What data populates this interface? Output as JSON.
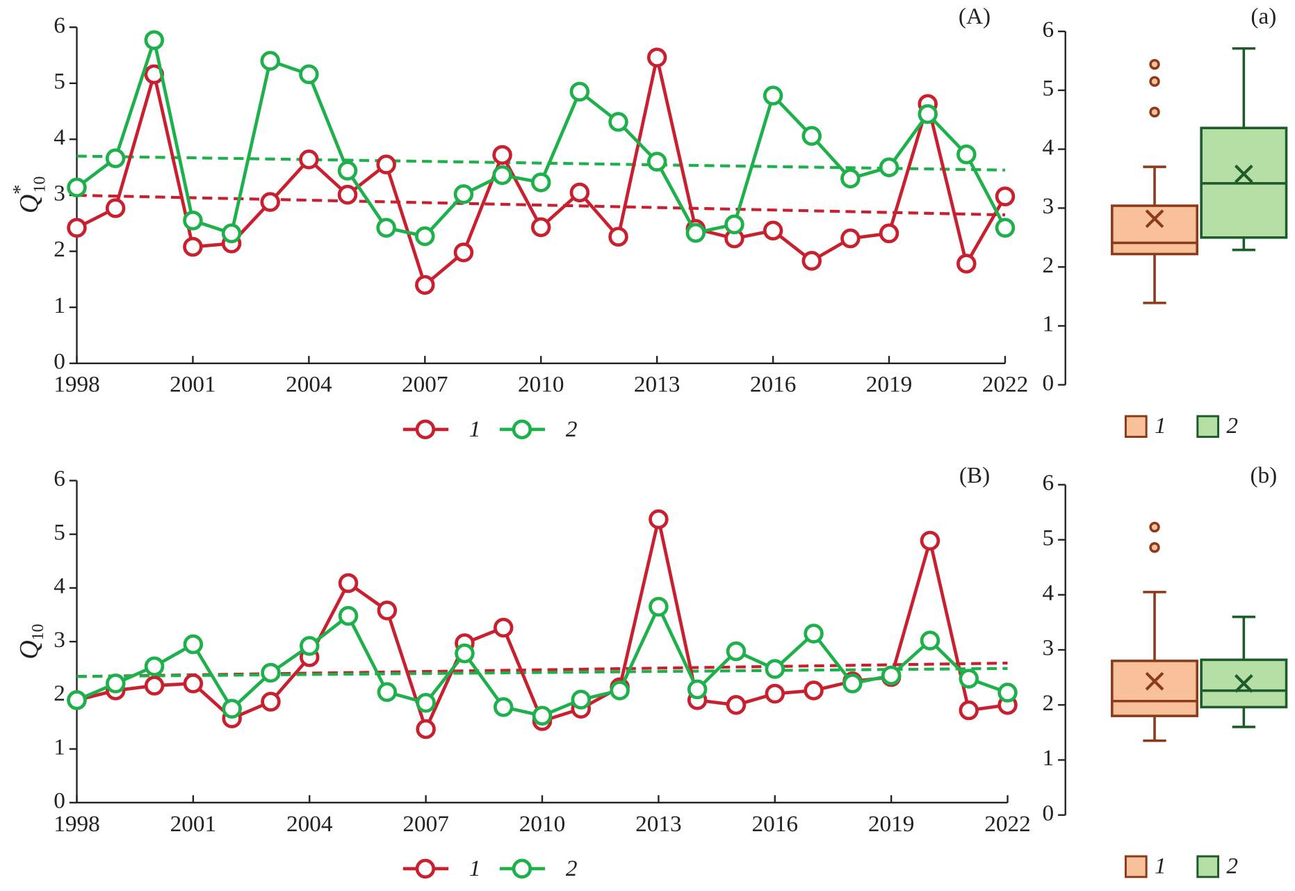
{
  "chart_data": [
    {
      "type": "line",
      "panel_label": "(A)",
      "y_label": "Q",
      "y_label_sup": "*",
      "y_label_sub": "10",
      "x": [
        1998,
        1999,
        2000,
        2001,
        2002,
        2003,
        2004,
        2005,
        2006,
        2007,
        2008,
        2009,
        2010,
        2011,
        2012,
        2013,
        2014,
        2015,
        2016,
        2017,
        2018,
        2019,
        2020,
        2021,
        2022
      ],
      "xlim": [
        1998,
        2022
      ],
      "xticks": [
        1998,
        2001,
        2004,
        2007,
        2010,
        2013,
        2016,
        2019,
        2022
      ],
      "ylim": [
        0,
        6
      ],
      "yticks": [
        0,
        1,
        2,
        3,
        4,
        5,
        6
      ],
      "series": [
        {
          "name": "1",
          "color": "#c8202f",
          "values": [
            2.42,
            2.77,
            5.16,
            2.08,
            2.14,
            2.88,
            3.64,
            3.01,
            3.55,
            1.4,
            1.98,
            3.72,
            2.43,
            3.05,
            2.26,
            5.46,
            2.4,
            2.23,
            2.37,
            1.83,
            2.23,
            2.32,
            4.63,
            1.78,
            2.98
          ],
          "trend": [
            3.0,
            2.65
          ]
        },
        {
          "name": "2",
          "color": "#1db04b",
          "values": [
            3.14,
            3.66,
            5.77,
            2.55,
            2.32,
            5.4,
            5.16,
            3.44,
            2.42,
            2.27,
            3.02,
            3.36,
            3.23,
            4.85,
            4.31,
            3.6,
            2.33,
            2.48,
            4.78,
            4.06,
            3.3,
            3.5,
            4.45,
            3.73,
            2.42
          ],
          "trend": [
            3.7,
            3.45
          ]
        }
      ]
    },
    {
      "type": "box",
      "panel_label": "(a)",
      "ylim": [
        0,
        6
      ],
      "yticks": [
        0,
        1,
        2,
        3,
        4,
        5,
        6
      ],
      "boxes": [
        {
          "name": "1",
          "color": "#f9c19a",
          "edge": "#8b3a1a",
          "whisker_low": 1.39,
          "q1": 2.22,
          "median": 2.41,
          "q3": 3.04,
          "whisker_high": 3.7,
          "mean": 2.82,
          "outliers": [
            5.44,
            5.15,
            4.63
          ]
        },
        {
          "name": "2",
          "color": "#b5dfa5",
          "edge": "#1e5b2a",
          "whisker_low": 2.29,
          "q1": 2.5,
          "median": 3.42,
          "q3": 4.36,
          "whisker_high": 5.71,
          "mean": 3.58,
          "outliers": []
        }
      ]
    },
    {
      "type": "line",
      "panel_label": "(B)",
      "y_label": "Q",
      "y_label_sub": "10",
      "x": [
        1998,
        1999,
        2000,
        2001,
        2002,
        2003,
        2004,
        2005,
        2006,
        2007,
        2008,
        2009,
        2010,
        2011,
        2012,
        2013,
        2014,
        2015,
        2016,
        2017,
        2018,
        2019,
        2020,
        2021,
        2022
      ],
      "xlim": [
        1998,
        2022
      ],
      "xticks": [
        1998,
        2001,
        2004,
        2007,
        2010,
        2013,
        2016,
        2019,
        2022
      ],
      "ylim": [
        0,
        6
      ],
      "yticks": [
        0,
        1,
        2,
        3,
        4,
        5,
        6
      ],
      "series": [
        {
          "name": "1",
          "color": "#c8202f",
          "values": [
            1.91,
            2.09,
            2.18,
            2.22,
            1.57,
            1.88,
            2.71,
            4.09,
            3.58,
            1.37,
            2.97,
            3.26,
            1.52,
            1.75,
            2.15,
            5.28,
            1.91,
            1.82,
            2.03,
            2.09,
            2.26,
            2.34,
            4.88,
            1.72,
            1.82
          ],
          "trend": [
            2.35,
            2.6
          ]
        },
        {
          "name": "2",
          "color": "#1db04b",
          "values": [
            1.91,
            2.22,
            2.54,
            2.95,
            1.75,
            2.42,
            2.92,
            3.48,
            2.06,
            1.86,
            2.78,
            1.78,
            1.62,
            1.92,
            2.09,
            3.65,
            2.11,
            2.82,
            2.49,
            3.15,
            2.22,
            2.37,
            3.02,
            2.31,
            2.05
          ],
          "trend": [
            2.35,
            2.5
          ]
        }
      ]
    },
    {
      "type": "box",
      "panel_label": "(b)",
      "ylim": [
        0,
        6
      ],
      "yticks": [
        0,
        1,
        2,
        3,
        4,
        5,
        6
      ],
      "boxes": [
        {
          "name": "1",
          "color": "#f9c19a",
          "edge": "#8b3a1a",
          "whisker_low": 1.35,
          "q1": 1.8,
          "median": 2.07,
          "q3": 2.8,
          "whisker_high": 4.05,
          "mean": 2.43,
          "outliers": [
            5.23,
            4.86
          ]
        },
        {
          "name": "2",
          "color": "#b5dfa5",
          "edge": "#1e5b2a",
          "whisker_low": 1.6,
          "q1": 1.96,
          "median": 2.26,
          "q3": 2.82,
          "whisker_high": 3.6,
          "mean": 2.39,
          "outliers": []
        }
      ]
    }
  ]
}
